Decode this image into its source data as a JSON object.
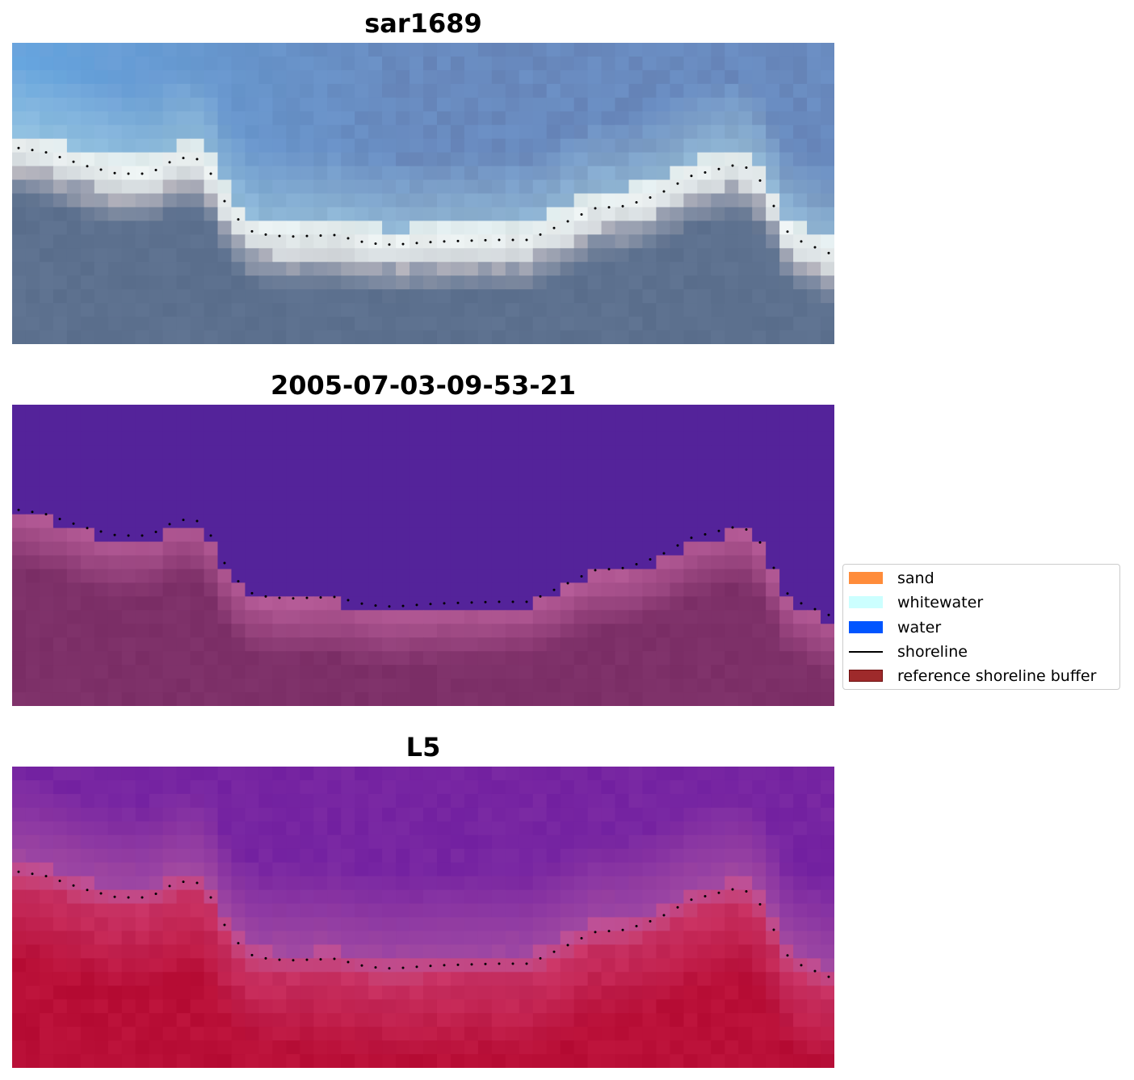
{
  "panels": [
    {
      "title": "sar1689",
      "kind": "rgb"
    },
    {
      "title": "2005-07-03-09-53-21",
      "kind": "classified"
    },
    {
      "title": "L5",
      "kind": "index"
    }
  ],
  "legend": {
    "items": [
      {
        "label": "sand",
        "type": "patch",
        "color": "#ff8c3a"
      },
      {
        "label": "whitewater",
        "type": "patch",
        "color": "#ccffff"
      },
      {
        "label": "water",
        "type": "patch",
        "color": "#0055ff"
      },
      {
        "label": "shoreline",
        "type": "line",
        "color": "#000000"
      },
      {
        "label": "reference shoreline buffer",
        "type": "patch",
        "color": "#9e2a2b",
        "edge": "#6e1010"
      }
    ]
  },
  "colors": {
    "classified_water": "#54239a",
    "classified_land": "#7e3068",
    "shoreline_dots": "#000000"
  }
}
